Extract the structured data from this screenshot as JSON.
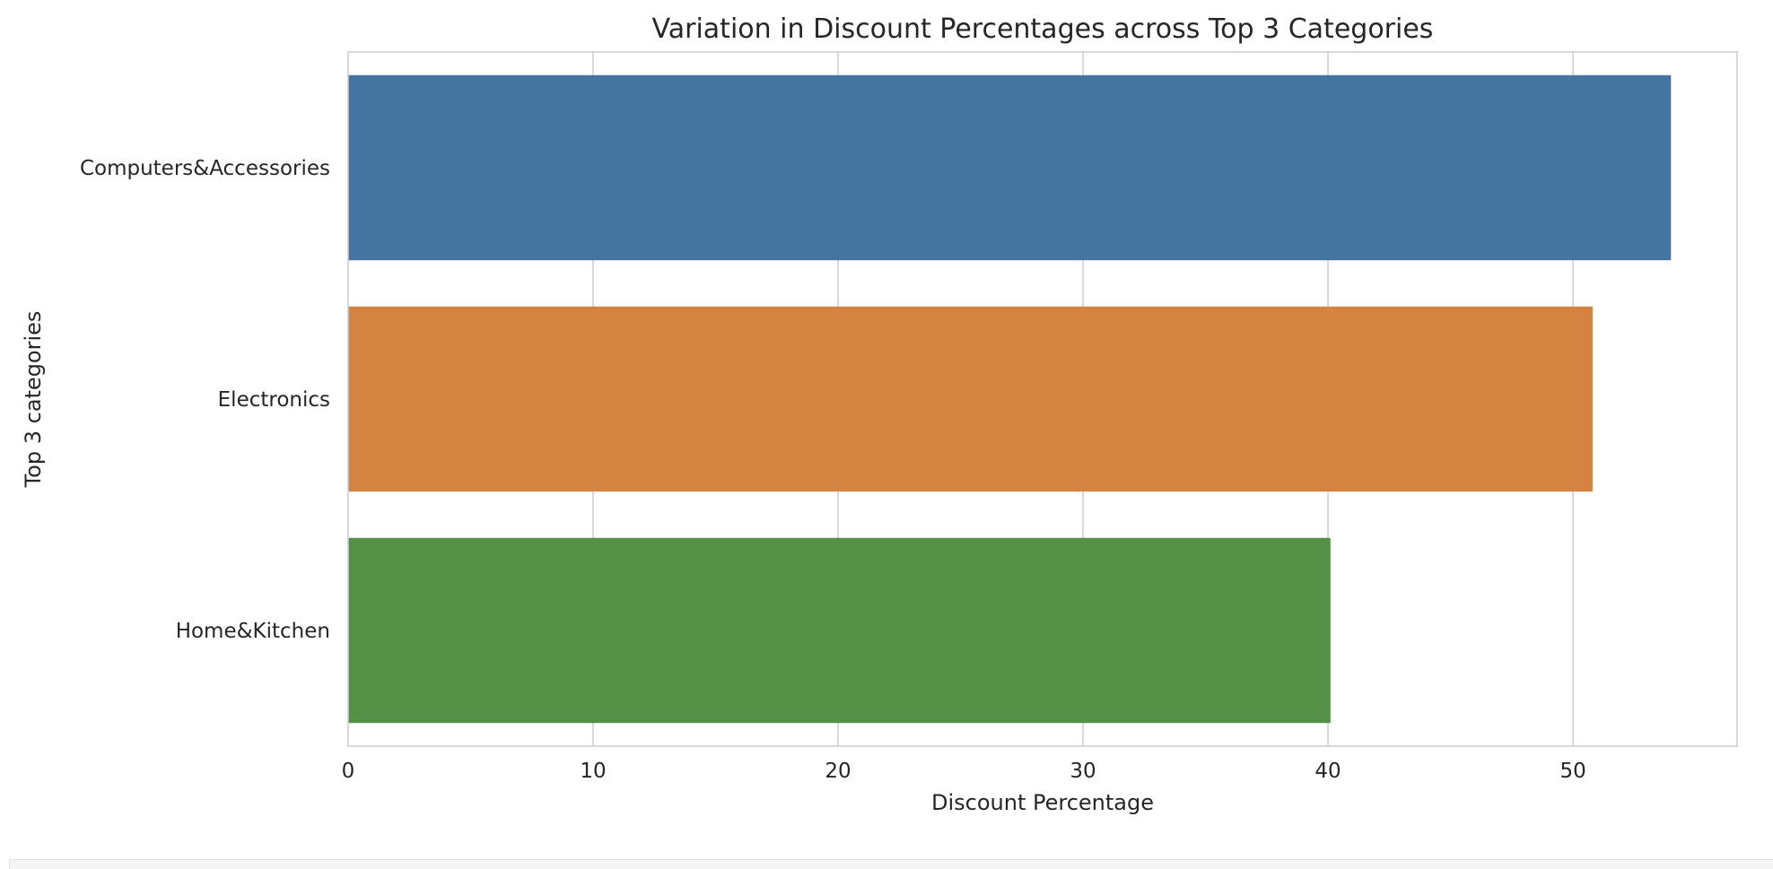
{
  "chart_data": {
    "type": "bar",
    "orientation": "horizontal",
    "title": "Variation in Discount Percentages across Top 3 Categories",
    "xlabel": "Discount Percentage",
    "ylabel": "Top 3 categories",
    "categories": [
      "Computers&Accessories",
      "Electronics",
      "Home&Kitchen"
    ],
    "values": [
      54.0,
      50.8,
      40.1
    ],
    "colors": [
      "#4474a0",
      "#d58341",
      "#549146"
    ],
    "xlim": [
      0,
      56.7
    ],
    "xticks": [
      0,
      10,
      20,
      30,
      40,
      50
    ],
    "grid": true
  }
}
